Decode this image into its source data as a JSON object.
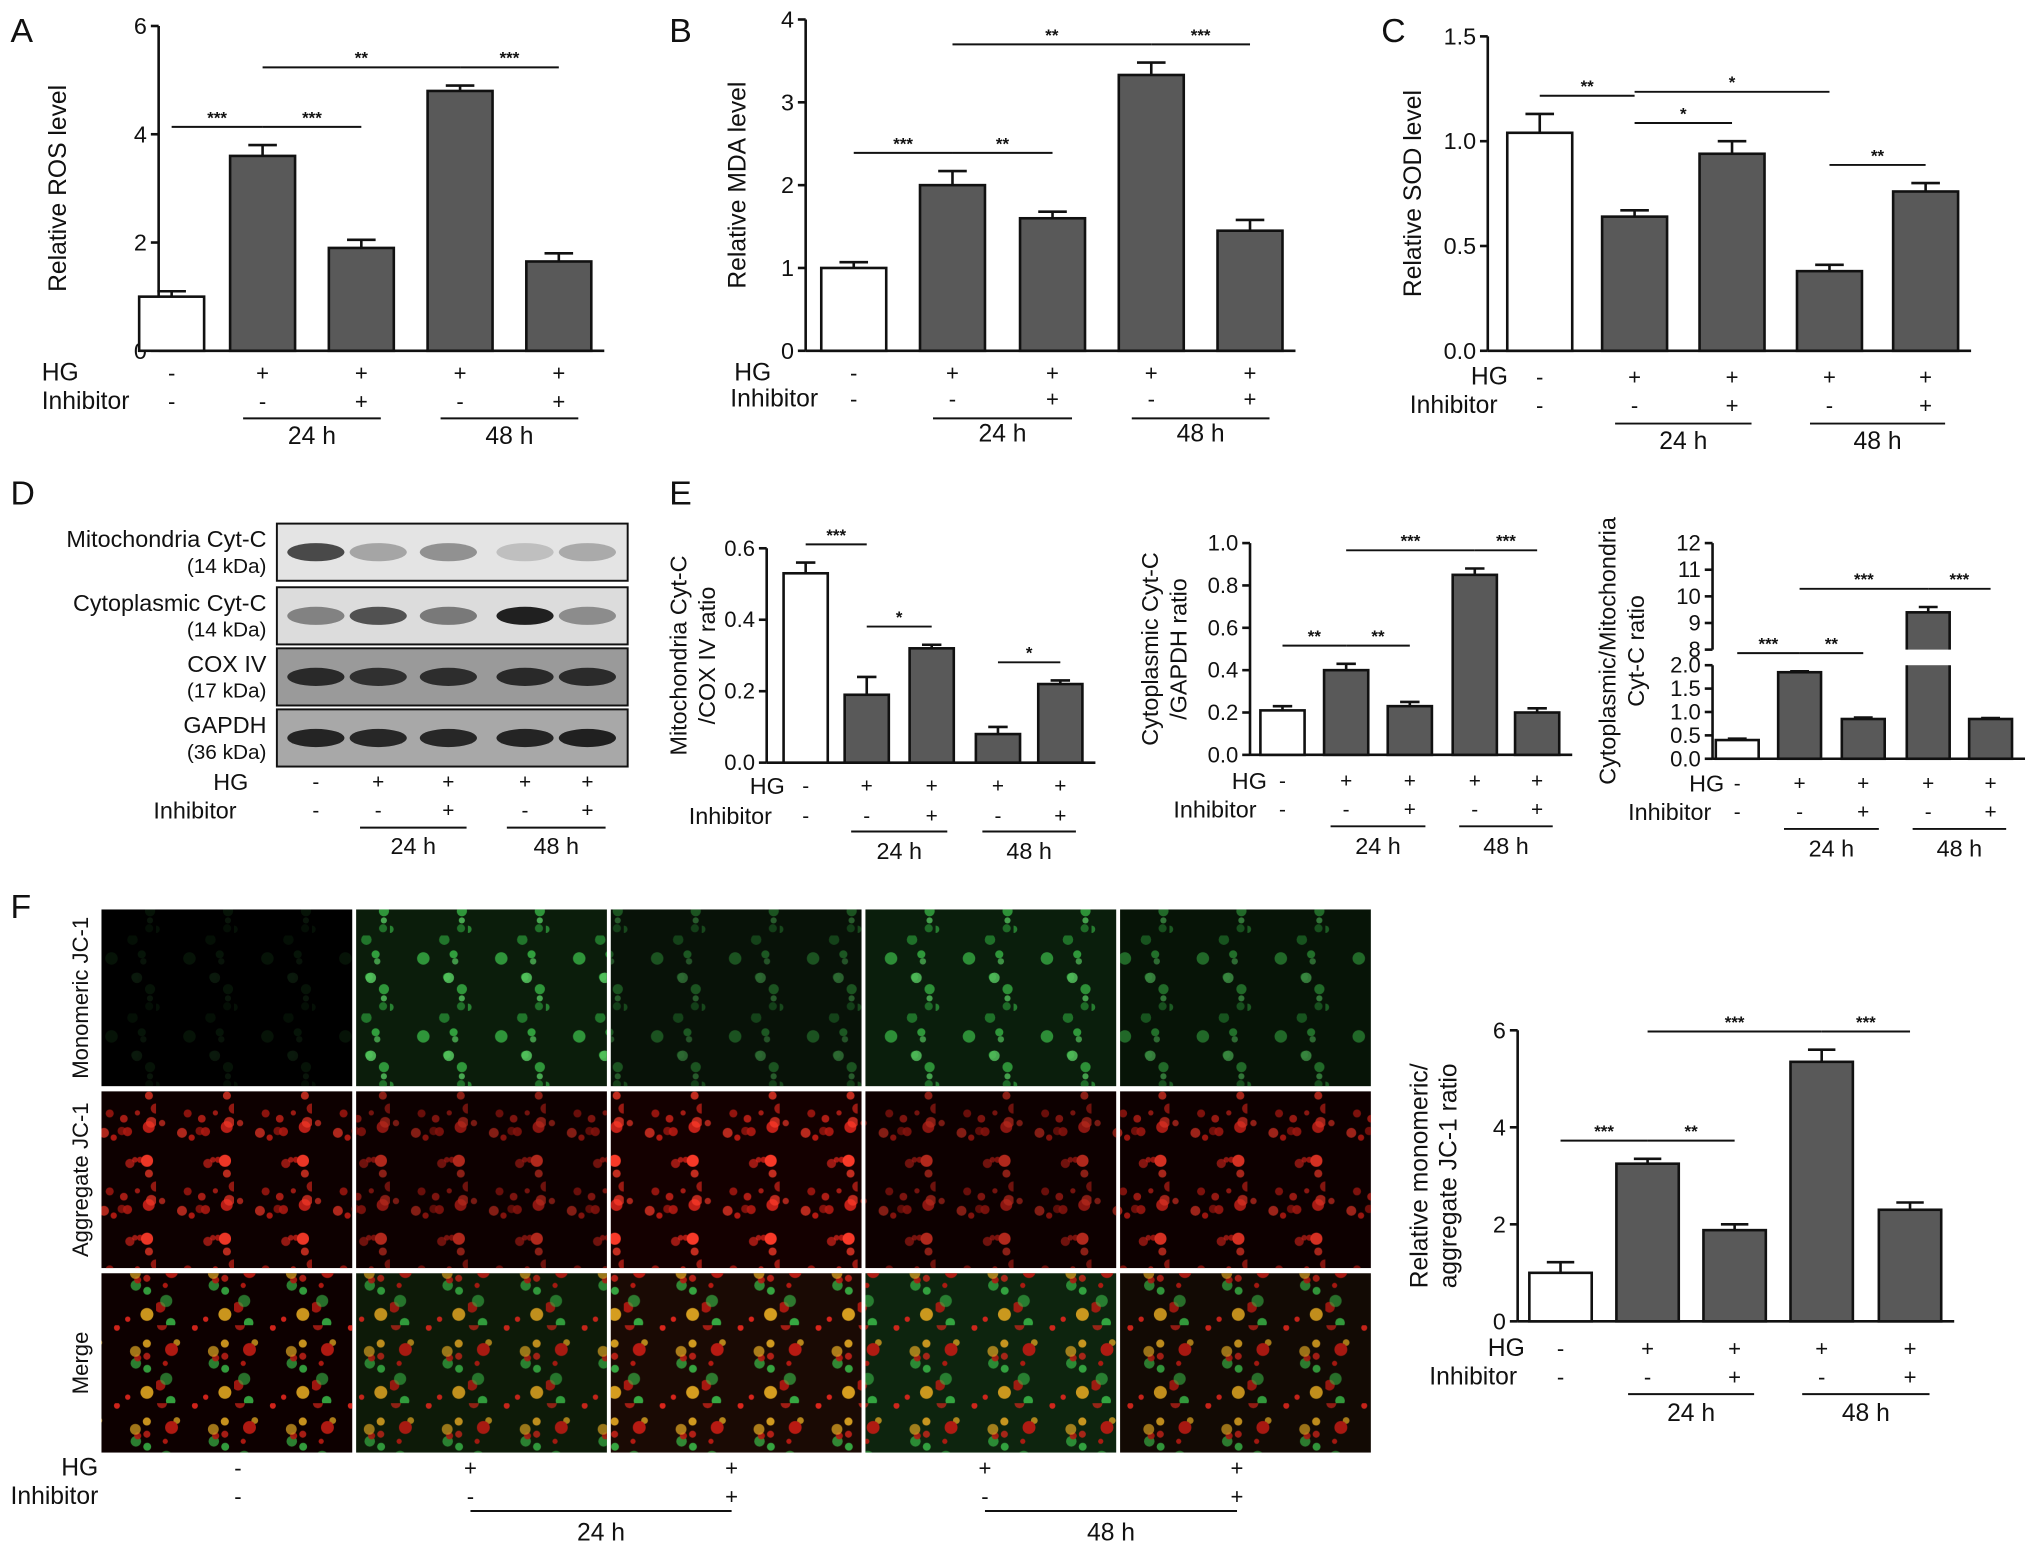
{
  "panel_labels": [
    "A",
    "B",
    "C",
    "D",
    "E",
    "F"
  ],
  "chart_data": [
    {
      "type": "bar",
      "y_label": [
        "Relative ROS level"
      ],
      "values": [
        1.0,
        3.6,
        1.9,
        4.8,
        1.65
      ],
      "errors": [
        0.1,
        0.2,
        0.15,
        0.1,
        0.15
      ],
      "colors": [
        "#ffffff",
        "#595959",
        "#595959",
        "#595959",
        "#595959"
      ],
      "ylim": [
        0,
        6
      ],
      "yticks": [
        0,
        2,
        4,
        6
      ],
      "significance": [
        {
          "bars": [
            0,
            1
          ],
          "label": "***"
        },
        {
          "bars": [
            1,
            2
          ],
          "label": "***"
        },
        {
          "bars": [
            1,
            3
          ],
          "label": "**"
        },
        {
          "bars": [
            3,
            4
          ],
          "label": "***"
        }
      ],
      "condition_labels": [
        "HG",
        "Inhibitor"
      ],
      "hg": [
        "-",
        "+",
        "+",
        "+",
        "+"
      ],
      "inhibitor": [
        "-",
        "-",
        "+",
        "-",
        "+"
      ],
      "groups": [
        "24 h",
        "48 h"
      ]
    },
    {
      "type": "bar",
      "y_label": [
        "Relative MDA level"
      ],
      "values": [
        1.0,
        2.0,
        1.6,
        3.33,
        1.45
      ],
      "errors": [
        0.07,
        0.17,
        0.08,
        0.15,
        0.13
      ],
      "colors": [
        "#ffffff",
        "#595959",
        "#595959",
        "#595959",
        "#595959"
      ],
      "ylim": [
        0,
        4
      ],
      "yticks": [
        0,
        1,
        2,
        3,
        4
      ],
      "significance": [
        {
          "bars": [
            0,
            1
          ],
          "label": "***"
        },
        {
          "bars": [
            1,
            2
          ],
          "label": "**"
        },
        {
          "bars": [
            1,
            3
          ],
          "label": "**"
        },
        {
          "bars": [
            3,
            4
          ],
          "label": "***"
        }
      ],
      "condition_labels": [
        "HG",
        "Inhibitor"
      ],
      "hg": [
        "-",
        "+",
        "+",
        "+",
        "+"
      ],
      "inhibitor": [
        "-",
        "-",
        "+",
        "-",
        "+"
      ],
      "groups": [
        "24 h",
        "48 h"
      ]
    },
    {
      "type": "bar",
      "y_label": [
        "Relative SOD level"
      ],
      "values": [
        1.04,
        0.64,
        0.94,
        0.38,
        0.76
      ],
      "errors": [
        0.09,
        0.03,
        0.06,
        0.03,
        0.04
      ],
      "colors": [
        "#ffffff",
        "#595959",
        "#595959",
        "#595959",
        "#595959"
      ],
      "ylim": [
        0,
        1.5
      ],
      "yticks": [
        {
          "value": 0,
          "label": "0.0"
        },
        {
          "value": 0.5,
          "label": "0.5"
        },
        {
          "value": 1,
          "label": "1.0"
        },
        {
          "value": 1.5,
          "label": "1.5"
        }
      ],
      "significance": [
        {
          "bars": [
            0,
            1
          ],
          "label": "**"
        },
        {
          "bars": [
            1,
            2
          ],
          "label": "*"
        },
        {
          "bars": [
            1,
            3
          ],
          "label": "*"
        },
        {
          "bars": [
            3,
            4
          ],
          "label": "**"
        }
      ],
      "condition_labels": [
        "HG",
        "Inhibitor"
      ],
      "hg": [
        "-",
        "+",
        "+",
        "+",
        "+"
      ],
      "inhibitor": [
        "-",
        "-",
        "+",
        "-",
        "+"
      ],
      "groups": [
        "24 h",
        "48 h"
      ]
    },
    {
      "type": "bar",
      "y_label": [
        "Mitochondria Cyt-C",
        "/COX IV ratio"
      ],
      "values": [
        0.53,
        0.19,
        0.32,
        0.08,
        0.22
      ],
      "errors": [
        0.03,
        0.05,
        0.01,
        0.02,
        0.01
      ],
      "colors": [
        "#ffffff",
        "#595959",
        "#595959",
        "#595959",
        "#595959"
      ],
      "ylim": [
        0,
        0.6
      ],
      "yticks": [
        {
          "value": 0,
          "label": "0.0"
        },
        {
          "value": 0.2,
          "label": "0.2"
        },
        {
          "value": 0.4,
          "label": "0.4"
        },
        {
          "value": 0.6,
          "label": "0.6"
        }
      ],
      "significance": [
        {
          "bars": [
            0,
            1
          ],
          "label": "***"
        },
        {
          "bars": [
            1,
            2
          ],
          "label": "*"
        },
        {
          "bars": [
            3,
            4
          ],
          "label": "*"
        }
      ],
      "condition_labels": [
        "HG",
        "Inhibitor"
      ],
      "hg": [
        "-",
        "+",
        "+",
        "+",
        "+"
      ],
      "inhibitor": [
        "-",
        "-",
        "+",
        "-",
        "+"
      ],
      "groups": [
        "24 h",
        "48 h"
      ]
    },
    {
      "type": "bar",
      "y_label": [
        "Cytoplasmic Cyt-C",
        "/GAPDH ratio"
      ],
      "values": [
        0.21,
        0.4,
        0.23,
        0.85,
        0.2
      ],
      "errors": [
        0.02,
        0.03,
        0.02,
        0.03,
        0.02
      ],
      "colors": [
        "#ffffff",
        "#595959",
        "#595959",
        "#595959",
        "#595959"
      ],
      "ylim": [
        0,
        1
      ],
      "yticks": [
        {
          "value": 0,
          "label": "0.0"
        },
        0.2,
        0.4,
        0.6,
        0.8,
        {
          "value": 1,
          "label": "1.0"
        }
      ],
      "significance": [
        {
          "bars": [
            0,
            1
          ],
          "label": "**"
        },
        {
          "bars": [
            1,
            2
          ],
          "label": "**"
        },
        {
          "bars": [
            1,
            3
          ],
          "label": "***"
        },
        {
          "bars": [
            3,
            4
          ],
          "label": "***"
        }
      ],
      "condition_labels": [
        "HG",
        "Inhibitor"
      ],
      "hg": [
        "-",
        "+",
        "+",
        "+",
        "+"
      ],
      "inhibitor": [
        "-",
        "-",
        "+",
        "-",
        "+"
      ],
      "groups": [
        "24 h",
        "48 h"
      ]
    },
    {
      "type": "bar",
      "y_label": [
        "Cytoplasmic/Mitochondria",
        "Cyt-C ratio"
      ],
      "values": [
        0.4,
        1.85,
        0.85,
        9.4,
        0.85
      ],
      "errors": [
        0.03,
        0.02,
        0.03,
        0.2,
        0.02
      ],
      "colors": [
        "#ffffff",
        "#595959",
        "#595959",
        "#595959",
        "#595959"
      ],
      "ylim": [
        0,
        12
      ],
      "ybreak": [
        2,
        8
      ],
      "yticks": [
        {
          "value": 0,
          "label": "0.0"
        },
        0.5,
        {
          "value": 1,
          "label": "1.0"
        },
        1.5,
        {
          "value": 2,
          "label": "2.0"
        },
        8,
        9,
        10,
        11,
        12
      ],
      "significance": [
        {
          "bars": [
            0,
            1
          ],
          "label": "***"
        },
        {
          "bars": [
            1,
            2
          ],
          "label": "**"
        },
        {
          "bars": [
            1,
            3
          ],
          "label": "***"
        },
        {
          "bars": [
            3,
            4
          ],
          "label": "***"
        }
      ],
      "condition_labels": [
        "HG",
        "Inhibitor"
      ],
      "hg": [
        "-",
        "+",
        "+",
        "+",
        "+"
      ],
      "inhibitor": [
        "-",
        "-",
        "+",
        "-",
        "+"
      ],
      "groups": [
        "24 h",
        "48 h"
      ]
    },
    {
      "type": "bar",
      "y_label": [
        "Relative monomeric/",
        "aggregate JC-1 ratio"
      ],
      "values": [
        1.0,
        3.25,
        1.88,
        5.35,
        2.3
      ],
      "errors": [
        0.22,
        0.1,
        0.12,
        0.25,
        0.15
      ],
      "colors": [
        "#ffffff",
        "#595959",
        "#595959",
        "#595959",
        "#595959"
      ],
      "ylim": [
        0,
        6
      ],
      "yticks": [
        0,
        2,
        4,
        6
      ],
      "significance": [
        {
          "bars": [
            0,
            1
          ],
          "label": "***"
        },
        {
          "bars": [
            1,
            2
          ],
          "label": "**"
        },
        {
          "bars": [
            1,
            3
          ],
          "label": "***"
        },
        {
          "bars": [
            3,
            4
          ],
          "label": "***"
        }
      ],
      "condition_labels": [
        "HG",
        "Inhibitor"
      ],
      "hg": [
        "-",
        "+",
        "+",
        "+",
        "+"
      ],
      "inhibitor": [
        "-",
        "-",
        "+",
        "-",
        "+"
      ],
      "groups": [
        "24 h",
        "48 h"
      ]
    }
  ],
  "blot": {
    "rows": [
      {
        "name": "Mitochondria Cyt-C",
        "size": "(14 kDa)"
      },
      {
        "name": "Cytoplasmic Cyt-C",
        "size": "(14 kDa)"
      },
      {
        "name": "COX IV",
        "size": "(17 kDa)"
      },
      {
        "name": "GAPDH",
        "size": "(36 kDa)"
      }
    ],
    "condition_labels": [
      "HG",
      "Inhibitor"
    ],
    "hg": [
      "-",
      "+",
      "+",
      "+",
      "+"
    ],
    "inhibitor": [
      "-",
      "-",
      "+",
      "-",
      "+"
    ],
    "groups": [
      "24 h",
      "48 h"
    ]
  },
  "images": {
    "rows": [
      "Monomeric JC-1",
      "Aggregate JC-1",
      "Merge"
    ],
    "condition_labels": [
      "HG",
      "Inhibitor"
    ],
    "hg": [
      "-",
      "+",
      "+",
      "+",
      "+"
    ],
    "inhibitor": [
      "-",
      "-",
      "+",
      "-",
      "+"
    ],
    "groups": [
      "24 h",
      "48 h"
    ]
  }
}
